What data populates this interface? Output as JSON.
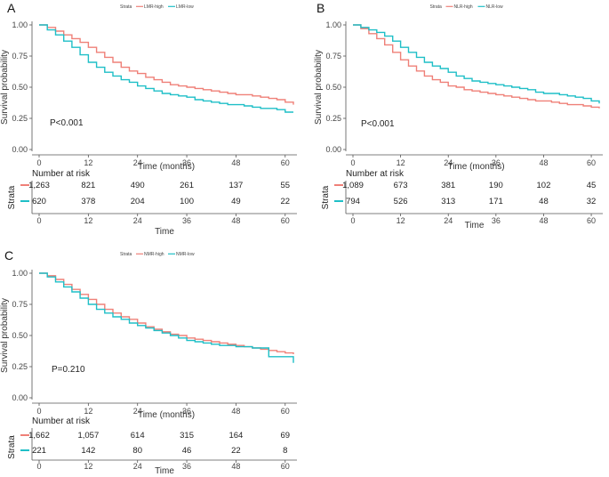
{
  "colors": {
    "high": "#ef8078",
    "low": "#1fbfc7",
    "axis": "#555555"
  },
  "labels": {
    "number_at_risk": "Number at risk",
    "strata": "Strata",
    "survival_probability": "Survival probability"
  },
  "chart_data": [
    {
      "id": "A",
      "type": "line",
      "panel_label": "A",
      "legend": {
        "title": "Strata",
        "high": "LMR-high",
        "low": "LMR-low",
        "placement": "top"
      },
      "ylabel": "Survival probability",
      "xlabel_curve": "Time (months)",
      "xlabel_table": "Time",
      "xticks": [
        "0",
        "12",
        "24",
        "36",
        "48",
        "60"
      ],
      "yticks": [
        "0.00",
        "0.25",
        "0.50",
        "0.75",
        "1.00"
      ],
      "xlim": [
        0,
        62
      ],
      "ylim": [
        0,
        1
      ],
      "pvalue": "P<0.001",
      "series": [
        {
          "name": "LMR-high",
          "key": "high",
          "x": [
            0,
            2,
            4,
            6,
            8,
            10,
            12,
            14,
            16,
            18,
            20,
            22,
            24,
            26,
            28,
            30,
            32,
            34,
            36,
            38,
            40,
            42,
            44,
            46,
            48,
            50,
            52,
            54,
            56,
            58,
            60,
            62
          ],
          "y": [
            1.0,
            0.98,
            0.95,
            0.92,
            0.89,
            0.86,
            0.82,
            0.78,
            0.74,
            0.7,
            0.66,
            0.63,
            0.61,
            0.58,
            0.56,
            0.54,
            0.52,
            0.51,
            0.5,
            0.49,
            0.48,
            0.47,
            0.46,
            0.45,
            0.44,
            0.44,
            0.43,
            0.42,
            0.41,
            0.4,
            0.38,
            0.36
          ]
        },
        {
          "name": "LMR-low",
          "key": "low",
          "x": [
            0,
            2,
            4,
            6,
            8,
            10,
            12,
            14,
            16,
            18,
            20,
            22,
            24,
            26,
            28,
            30,
            32,
            34,
            36,
            38,
            40,
            42,
            44,
            46,
            48,
            50,
            52,
            54,
            56,
            58,
            60,
            62
          ],
          "y": [
            1.0,
            0.96,
            0.92,
            0.87,
            0.82,
            0.76,
            0.7,
            0.66,
            0.62,
            0.59,
            0.56,
            0.54,
            0.51,
            0.49,
            0.47,
            0.45,
            0.44,
            0.43,
            0.42,
            0.4,
            0.39,
            0.38,
            0.37,
            0.36,
            0.36,
            0.35,
            0.34,
            0.33,
            0.33,
            0.32,
            0.3,
            0.3
          ]
        }
      ],
      "risk_table": {
        "high": [
          "1,263",
          "821",
          "490",
          "261",
          "137",
          "55"
        ],
        "low": [
          "620",
          "378",
          "204",
          "100",
          "49",
          "22"
        ]
      }
    },
    {
      "id": "B",
      "type": "line",
      "panel_label": "B",
      "legend": {
        "title": "Strata",
        "high": "NLR-high",
        "low": "NLR-low",
        "placement": "top"
      },
      "ylabel": "Survival probability",
      "xlabel_curve": "Time (months)",
      "xlabel_table": "Time",
      "xticks": [
        "0",
        "12",
        "24",
        "36",
        "48",
        "60"
      ],
      "yticks": [
        "0.00",
        "0.25",
        "0.50",
        "0.75",
        "1.00"
      ],
      "xlim": [
        0,
        62
      ],
      "ylim": [
        0,
        1
      ],
      "pvalue": "P<0.001",
      "series": [
        {
          "name": "NLR-high",
          "key": "high",
          "x": [
            0,
            2,
            4,
            6,
            8,
            10,
            12,
            14,
            16,
            18,
            20,
            22,
            24,
            26,
            28,
            30,
            32,
            34,
            36,
            38,
            40,
            42,
            44,
            46,
            48,
            50,
            52,
            54,
            56,
            58,
            60,
            62
          ],
          "y": [
            1.0,
            0.97,
            0.93,
            0.89,
            0.84,
            0.78,
            0.72,
            0.67,
            0.63,
            0.59,
            0.56,
            0.54,
            0.51,
            0.5,
            0.48,
            0.47,
            0.46,
            0.45,
            0.44,
            0.43,
            0.42,
            0.41,
            0.4,
            0.39,
            0.39,
            0.38,
            0.37,
            0.36,
            0.36,
            0.35,
            0.34,
            0.33
          ]
        },
        {
          "name": "NLR-low",
          "key": "low",
          "x": [
            0,
            2,
            4,
            6,
            8,
            10,
            12,
            14,
            16,
            18,
            20,
            22,
            24,
            26,
            28,
            30,
            32,
            34,
            36,
            38,
            40,
            42,
            44,
            46,
            48,
            50,
            52,
            54,
            56,
            58,
            60,
            62
          ],
          "y": [
            1.0,
            0.98,
            0.96,
            0.94,
            0.91,
            0.87,
            0.82,
            0.78,
            0.74,
            0.7,
            0.67,
            0.65,
            0.62,
            0.59,
            0.57,
            0.55,
            0.54,
            0.53,
            0.52,
            0.51,
            0.5,
            0.49,
            0.48,
            0.46,
            0.45,
            0.45,
            0.44,
            0.43,
            0.42,
            0.41,
            0.39,
            0.37
          ]
        }
      ],
      "risk_table": {
        "high": [
          "1,089",
          "673",
          "381",
          "190",
          "102",
          "45"
        ],
        "low": [
          "794",
          "526",
          "313",
          "171",
          "48",
          "32"
        ]
      }
    },
    {
      "id": "C",
      "type": "line",
      "panel_label": "C",
      "legend": {
        "title": "Strata",
        "high": "NMR-high",
        "low": "NMR-low",
        "placement": "top"
      },
      "ylabel": "Survival probability",
      "xlabel_curve": "Time (months)",
      "xlabel_table": "Time",
      "xticks": [
        "0",
        "12",
        "24",
        "36",
        "48",
        "60"
      ],
      "yticks": [
        "0.00",
        "0.25",
        "0.50",
        "0.75",
        "1.00"
      ],
      "xlim": [
        0,
        62
      ],
      "ylim": [
        0,
        1
      ],
      "pvalue": "P=0.210",
      "series": [
        {
          "name": "NMR-high",
          "key": "high",
          "x": [
            0,
            2,
            4,
            6,
            8,
            10,
            12,
            14,
            16,
            18,
            20,
            22,
            24,
            26,
            28,
            30,
            32,
            34,
            36,
            38,
            40,
            42,
            44,
            46,
            48,
            50,
            52,
            54,
            56,
            58,
            60,
            62
          ],
          "y": [
            1.0,
            0.98,
            0.95,
            0.91,
            0.87,
            0.83,
            0.79,
            0.75,
            0.71,
            0.68,
            0.65,
            0.63,
            0.6,
            0.57,
            0.55,
            0.53,
            0.51,
            0.5,
            0.48,
            0.47,
            0.46,
            0.45,
            0.44,
            0.43,
            0.42,
            0.41,
            0.4,
            0.39,
            0.38,
            0.37,
            0.36,
            0.35
          ]
        },
        {
          "name": "NMR-low",
          "key": "low",
          "x": [
            0,
            2,
            4,
            6,
            8,
            10,
            12,
            14,
            16,
            18,
            20,
            22,
            24,
            26,
            28,
            30,
            32,
            34,
            36,
            38,
            40,
            42,
            44,
            46,
            48,
            50,
            52,
            54,
            56,
            58,
            60,
            62
          ],
          "y": [
            1.0,
            0.97,
            0.93,
            0.89,
            0.85,
            0.8,
            0.75,
            0.71,
            0.68,
            0.65,
            0.63,
            0.6,
            0.58,
            0.56,
            0.54,
            0.52,
            0.5,
            0.48,
            0.46,
            0.45,
            0.44,
            0.43,
            0.42,
            0.42,
            0.41,
            0.41,
            0.4,
            0.4,
            0.33,
            0.33,
            0.33,
            0.28
          ]
        }
      ],
      "risk_table": {
        "high": [
          "1,662",
          "1,057",
          "614",
          "315",
          "164",
          "69"
        ],
        "low": [
          "221",
          "142",
          "80",
          "46",
          "22",
          "8"
        ]
      }
    }
  ]
}
